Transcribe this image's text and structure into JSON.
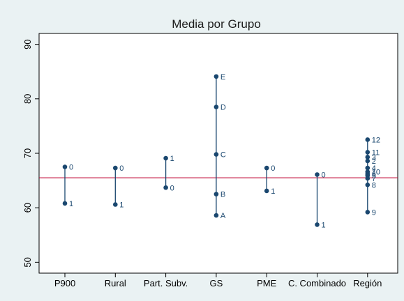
{
  "chart_data": {
    "type": "scatter",
    "title": "Media por Grupo",
    "xlabel": "",
    "ylabel": "",
    "ylim": [
      48,
      92
    ],
    "yticks": [
      50,
      60,
      70,
      80,
      90
    ],
    "reference_line": 65.5,
    "grid": false,
    "categories": [
      "P900",
      "Rural",
      "Part. Subv.",
      "GS",
      "PME",
      "C. Combinado",
      "Región"
    ],
    "groups": [
      {
        "category": "P900",
        "points": [
          {
            "label": "0",
            "value": 67.5
          },
          {
            "label": "1",
            "value": 60.8
          }
        ]
      },
      {
        "category": "Rural",
        "points": [
          {
            "label": "0",
            "value": 67.3
          },
          {
            "label": "1",
            "value": 60.6
          }
        ]
      },
      {
        "category": "Part. Subv.",
        "points": [
          {
            "label": "1",
            "value": 69.1
          },
          {
            "label": "0",
            "value": 63.7
          }
        ]
      },
      {
        "category": "GS",
        "points": [
          {
            "label": "E",
            "value": 84.1
          },
          {
            "label": "D",
            "value": 78.5
          },
          {
            "label": "C",
            "value": 69.8
          },
          {
            "label": "B",
            "value": 62.5
          },
          {
            "label": "A",
            "value": 58.6
          }
        ]
      },
      {
        "category": "PME",
        "points": [
          {
            "label": "0",
            "value": 67.3
          },
          {
            "label": "1",
            "value": 63.1
          }
        ]
      },
      {
        "category": "C. Combinado",
        "points": [
          {
            "label": "0",
            "value": 66.1
          },
          {
            "label": "1",
            "value": 56.9
          }
        ]
      },
      {
        "category": "Región",
        "points": [
          {
            "label": "12",
            "value": 72.5
          },
          {
            "label": "11",
            "value": 70.2
          },
          {
            "label": "3",
            "value": 69.3
          },
          {
            "label": "2",
            "value": 68.6
          },
          {
            "label": "4",
            "value": 67.3
          },
          {
            "label": "10",
            "value": 66.6
          },
          {
            "label": "6",
            "value": 66.2
          },
          {
            "label": "5",
            "value": 65.9
          },
          {
            "label": "7",
            "value": 65.4
          },
          {
            "label": "8",
            "value": 64.2
          },
          {
            "label": "9",
            "value": 59.2
          }
        ]
      }
    ]
  },
  "colors": {
    "background": "#eaf2f3",
    "plot_area": "#ffffff",
    "marker": "#1a476f",
    "reference_line": "#c10534",
    "text": "#000000"
  }
}
